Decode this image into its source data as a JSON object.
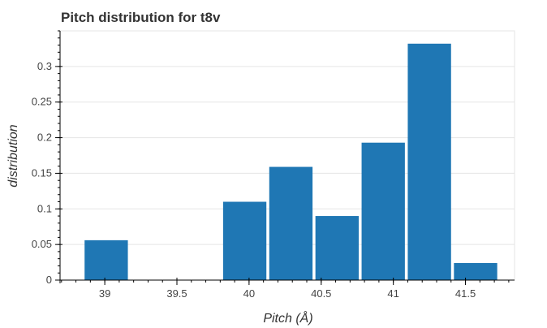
{
  "chart_data": {
    "type": "bar",
    "title": "Pitch distribution for t8v",
    "xlabel": "Pitch (Å)",
    "ylabel": "distribution",
    "bins": [
      {
        "start": 38.86,
        "end": 39.16,
        "value": 0.056
      },
      {
        "start": 39.18,
        "end": 39.48,
        "value": 0.0
      },
      {
        "start": 39.5,
        "end": 39.8,
        "value": 0.0
      },
      {
        "start": 39.82,
        "end": 40.12,
        "value": 0.11
      },
      {
        "start": 40.14,
        "end": 40.44,
        "value": 0.159
      },
      {
        "start": 40.46,
        "end": 40.76,
        "value": 0.09
      },
      {
        "start": 40.78,
        "end": 41.08,
        "value": 0.193
      },
      {
        "start": 41.1,
        "end": 41.4,
        "value": 0.332
      },
      {
        "start": 41.42,
        "end": 41.72,
        "value": 0.024
      }
    ],
    "xlim": [
      38.69,
      41.84
    ],
    "ylim": [
      0,
      0.35
    ],
    "xticks": [
      39,
      39.5,
      40,
      40.5,
      41,
      41.5
    ],
    "xtick_labels": [
      "39",
      "39.5",
      "40",
      "40.5",
      "41",
      "41.5"
    ],
    "yticks": [
      0,
      0.05,
      0.1,
      0.15,
      0.2,
      0.25,
      0.3
    ],
    "ytick_labels": [
      "0",
      "0.05",
      "0.1",
      "0.15",
      "0.2",
      "0.25",
      "0.3"
    ],
    "x_minor_step": 0.1,
    "y_minor_step": 0.01,
    "grid": true,
    "bar_color": "#1f77b4"
  }
}
